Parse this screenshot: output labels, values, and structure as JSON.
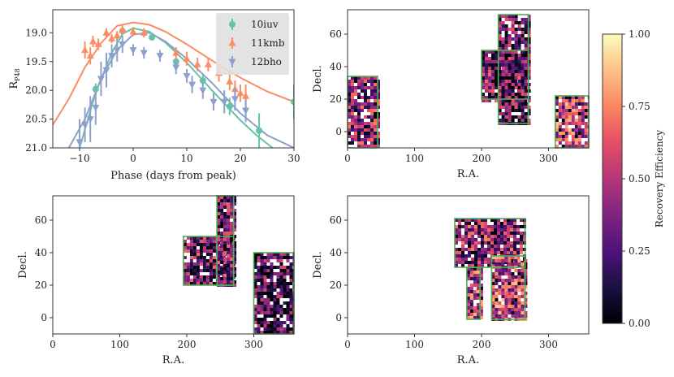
{
  "chart_data": [
    {
      "type": "line",
      "title": "",
      "xlabel": "Phase (days from peak)",
      "ylabel": "R_P48",
      "ylabel_main": "R",
      "ylabel_sub": "P48",
      "xlim": [
        -15,
        30
      ],
      "ylim": [
        21.0,
        18.6
      ],
      "inverted_y": true,
      "xticks": [
        -10,
        0,
        10,
        20,
        30
      ],
      "xtick_labels": [
        "−10",
        "0",
        "10",
        "20",
        "30"
      ],
      "yticks": [
        19.0,
        19.5,
        20.0,
        20.5,
        21.0
      ],
      "ytick_labels": [
        "19.0",
        "19.5",
        "20.0",
        "20.5",
        "21.0"
      ],
      "legend_position": "top-right",
      "series": [
        {
          "name": "10iuv",
          "color": "#66c2a5",
          "marker": "circle",
          "points": [
            [
              -7,
              19.98,
              0.1
            ],
            [
              -2,
              18.97,
              0.05
            ],
            [
              3.5,
              19.08,
              0.05
            ],
            [
              8,
              19.5,
              0.07
            ],
            [
              13,
              19.83,
              0.1
            ],
            [
              18,
              20.28,
              0.15
            ],
            [
              23.5,
              20.7,
              0.3
            ],
            [
              30,
              20.2,
              0.3
            ]
          ],
          "curve": [
            [
              -10,
              21.0
            ],
            [
              -7,
              20.04
            ],
            [
              -4,
              19.35
            ],
            [
              -2,
              19.02
            ],
            [
              0,
              18.92
            ],
            [
              3,
              18.98
            ],
            [
              6,
              19.17
            ],
            [
              10,
              19.52
            ],
            [
              15,
              20.03
            ],
            [
              20,
              20.52
            ],
            [
              23,
              20.78
            ],
            [
              26,
              21.0
            ]
          ]
        },
        {
          "name": "11kmb",
          "color": "#fc8d62",
          "marker": "triangle-up",
          "points": [
            [
              -9,
              19.3,
              0.15
            ],
            [
              -8,
              19.4,
              0.15
            ],
            [
              -7.5,
              19.15,
              0.1
            ],
            [
              -6.5,
              19.2,
              0.1
            ],
            [
              -5,
              19.0,
              0.08
            ],
            [
              -4,
              19.1,
              0.08
            ],
            [
              -3,
              19.05,
              0.08
            ],
            [
              -2,
              18.95,
              0.08
            ],
            [
              0,
              18.98,
              0.08
            ],
            [
              2,
              19.0,
              0.08
            ],
            [
              8,
              19.35,
              0.1
            ],
            [
              10,
              19.45,
              0.12
            ],
            [
              12,
              19.55,
              0.12
            ],
            [
              14,
              19.55,
              0.12
            ],
            [
              16,
              19.7,
              0.15
            ],
            [
              18,
              19.85,
              0.15
            ],
            [
              19,
              19.98,
              0.15
            ],
            [
              20,
              20.05,
              0.15
            ],
            [
              21,
              20.1,
              0.2
            ]
          ],
          "curve": [
            [
              -15,
              20.6
            ],
            [
              -12,
              20.15
            ],
            [
              -9,
              19.6
            ],
            [
              -6,
              19.18
            ],
            [
              -3,
              18.88
            ],
            [
              0,
              18.82
            ],
            [
              3,
              18.86
            ],
            [
              6,
              18.98
            ],
            [
              10,
              19.2
            ],
            [
              15,
              19.5
            ],
            [
              20,
              19.78
            ],
            [
              25,
              20.02
            ],
            [
              30,
              20.2
            ]
          ]
        },
        {
          "name": "12bho",
          "color": "#8da0cb",
          "marker": "triangle-down",
          "points": [
            [
              -10,
              20.9,
              0.4
            ],
            [
              -9,
              20.6,
              0.3
            ],
            [
              -8,
              20.5,
              0.4
            ],
            [
              -7,
              20.3,
              0.3
            ],
            [
              -6,
              19.8,
              0.3
            ],
            [
              -5,
              19.65,
              0.3
            ],
            [
              -4,
              19.4,
              0.2
            ],
            [
              -3,
              19.3,
              0.2
            ],
            [
              -2,
              19.2,
              0.15
            ],
            [
              0,
              19.3,
              0.1
            ],
            [
              2,
              19.35,
              0.1
            ],
            [
              5,
              19.4,
              0.1
            ],
            [
              8,
              19.6,
              0.12
            ],
            [
              10,
              19.75,
              0.12
            ],
            [
              11,
              19.9,
              0.15
            ],
            [
              13,
              20.0,
              0.15
            ],
            [
              15,
              20.2,
              0.15
            ],
            [
              17,
              20.2,
              0.2
            ],
            [
              19,
              20.15,
              0.2
            ],
            [
              21,
              20.35,
              0.2
            ]
          ],
          "curve": [
            [
              -12,
              21.0
            ],
            [
              -9,
              20.5
            ],
            [
              -6,
              19.8
            ],
            [
              -3,
              19.3
            ],
            [
              0,
              19.03
            ],
            [
              3,
              19.0
            ],
            [
              6,
              19.15
            ],
            [
              10,
              19.45
            ],
            [
              15,
              19.9
            ],
            [
              20,
              20.4
            ],
            [
              25,
              20.78
            ],
            [
              30,
              21.0
            ]
          ]
        }
      ]
    },
    {
      "type": "heatmap",
      "panel": "top-right",
      "xlabel": "R.A.",
      "ylabel": "Decl.",
      "xlim": [
        0,
        360
      ],
      "ylim": [
        -10,
        75
      ],
      "xticks": [
        0,
        100,
        200,
        300
      ],
      "yticks": [
        0,
        20,
        40,
        60
      ],
      "fields": [
        {
          "ra": [
            0,
            45
          ],
          "dec": [
            -10,
            34
          ],
          "mean": 0.4
        },
        {
          "ra": [
            200,
            270
          ],
          "dec": [
            20,
            50
          ],
          "mean": 0.35
        },
        {
          "ra": [
            225,
            270
          ],
          "dec": [
            5,
            72
          ],
          "mean": 0.3
        },
        {
          "ra": [
            310,
            360
          ],
          "dec": [
            -10,
            22
          ],
          "mean": 0.55
        }
      ]
    },
    {
      "type": "heatmap",
      "panel": "bottom-left",
      "xlabel": "R.A.",
      "ylabel": "Decl.",
      "xlim": [
        0,
        360
      ],
      "ylim": [
        -10,
        75
      ],
      "xticks": [
        0,
        100,
        200,
        300
      ],
      "yticks": [
        0,
        20,
        40,
        60
      ],
      "fields": [
        {
          "ra": [
            195,
            270
          ],
          "dec": [
            20,
            50
          ],
          "mean": 0.35
        },
        {
          "ra": [
            245,
            270
          ],
          "dec": [
            20,
            75
          ],
          "mean": 0.35
        },
        {
          "ra": [
            300,
            360
          ],
          "dec": [
            -10,
            40
          ],
          "mean": 0.25
        }
      ]
    },
    {
      "type": "heatmap",
      "panel": "bottom-right",
      "xlabel": "R.A.",
      "ylabel": "Decl.",
      "xlim": [
        0,
        360
      ],
      "ylim": [
        -10,
        75
      ],
      "xticks": [
        0,
        100,
        200,
        300
      ],
      "yticks": [
        0,
        20,
        40,
        60
      ],
      "fields": [
        {
          "ra": [
            160,
            265
          ],
          "dec": [
            31,
            61
          ],
          "mean": 0.4
        },
        {
          "ra": [
            178,
            198
          ],
          "dec": [
            -1,
            31
          ],
          "mean": 0.5
        },
        {
          "ra": [
            215,
            265
          ],
          "dec": [
            -1,
            38
          ],
          "mean": 0.55
        }
      ]
    }
  ],
  "colorbar": {
    "label": "Recovery Efficiency",
    "range": [
      0.0,
      1.0
    ],
    "ticks": [
      0.0,
      0.25,
      0.5,
      0.75,
      1.0
    ],
    "tick_labels": [
      "0.00",
      "0.25",
      "0.50",
      "0.75",
      "1.00"
    ],
    "colormap": "magma"
  },
  "colors": {
    "field_outline": "#4caf50",
    "axes": "#333333",
    "legend_bg": "#e0e0e0"
  }
}
